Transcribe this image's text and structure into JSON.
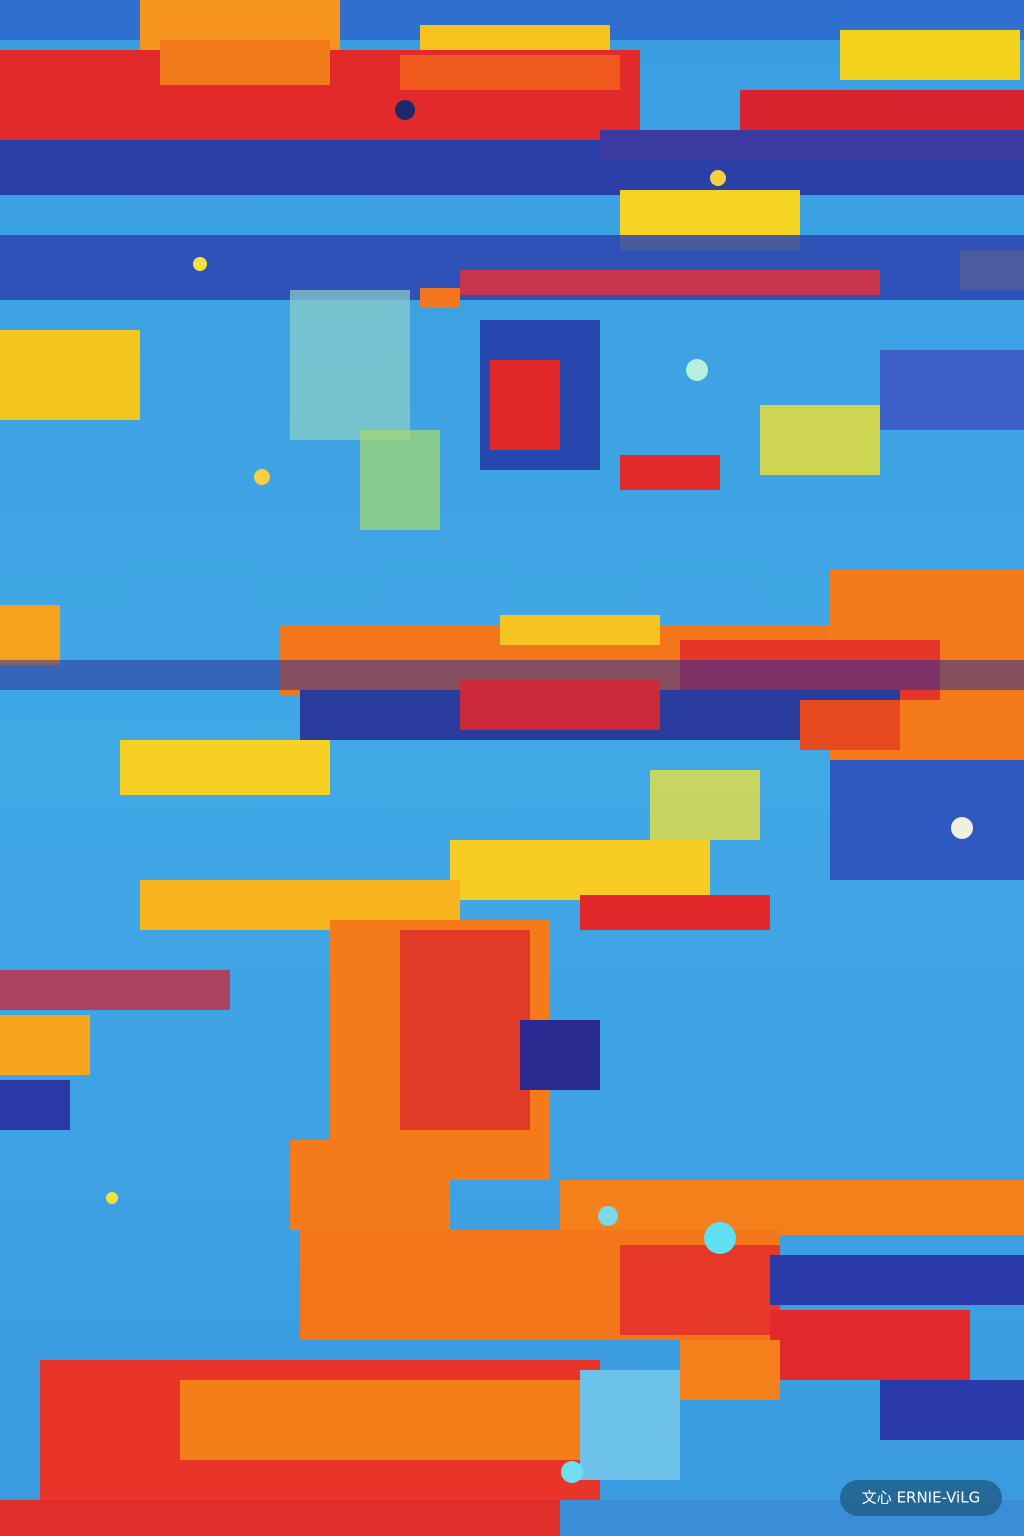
{
  "watermark": {
    "text": "文心 ERNIE-ViLG"
  }
}
